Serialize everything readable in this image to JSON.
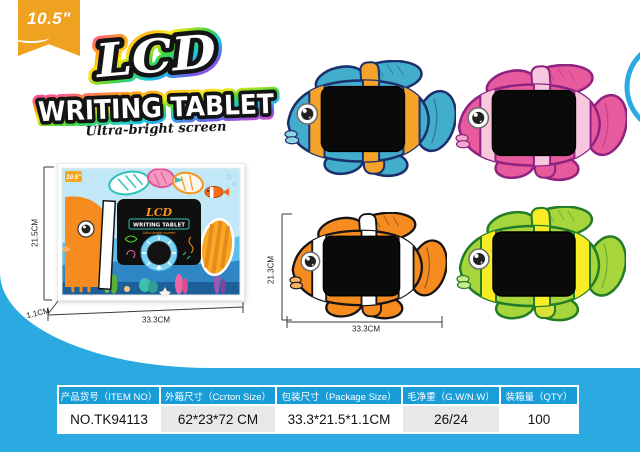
{
  "badge": {
    "size_label": "10.5\""
  },
  "title": {
    "line1": "LCD",
    "line2": "WRITING TABLET",
    "tagline": "Ultra-bright screen"
  },
  "box": {
    "art": {
      "badge": "10.5\"",
      "lcd": "LCD",
      "subtitle": "WRITING TABLET",
      "tagline": "Ultra-bright screen"
    },
    "dims": {
      "height": "21.5CM",
      "width": "33.3CM",
      "depth": "1.1CM"
    }
  },
  "fish_dims": {
    "height": "21.3CM",
    "width": "33.3CM"
  },
  "fish": [
    {
      "name": "blue",
      "body": "#43AECB",
      "stripe": "#F5A32B",
      "outline": "#1C2F6E",
      "light": "#8FD6E4",
      "tab": "#F5A32B"
    },
    {
      "name": "pink",
      "body": "#E75B9E",
      "stripe": "#F8C6DD",
      "outline": "#8E2382",
      "light": "#F4A8CC",
      "tab": "#E75B9E"
    },
    {
      "name": "orange",
      "body": "#F68B1F",
      "stripe": "#FFFFFF",
      "outline": "#141414",
      "light": "#FBB268",
      "tab": "#F68B1F"
    },
    {
      "name": "green",
      "body": "#A6D53C",
      "stripe": "#F8EC26",
      "outline": "#237C28",
      "light": "#CDE98C",
      "tab": "#D9E036"
    }
  ],
  "colors": {
    "page_blue": "#2BAAE2",
    "header_blue": "#189DD9",
    "badge_orange": "#EFA120",
    "row_gray": "#E8E8E8",
    "screen_black": "#0A0A0A"
  },
  "table": {
    "headers": [
      "产品货号（ITEM NO）",
      "外箱尺寸（Ccrton Size）",
      "包装尺寸（Package Size）",
      "毛净重（G.W/N.W）",
      "装箱量（QTY）"
    ],
    "values": [
      "NO.TK94113",
      "62*23*72 CM",
      "33.3*21.5*1.1CM",
      "26/24",
      "100"
    ]
  }
}
